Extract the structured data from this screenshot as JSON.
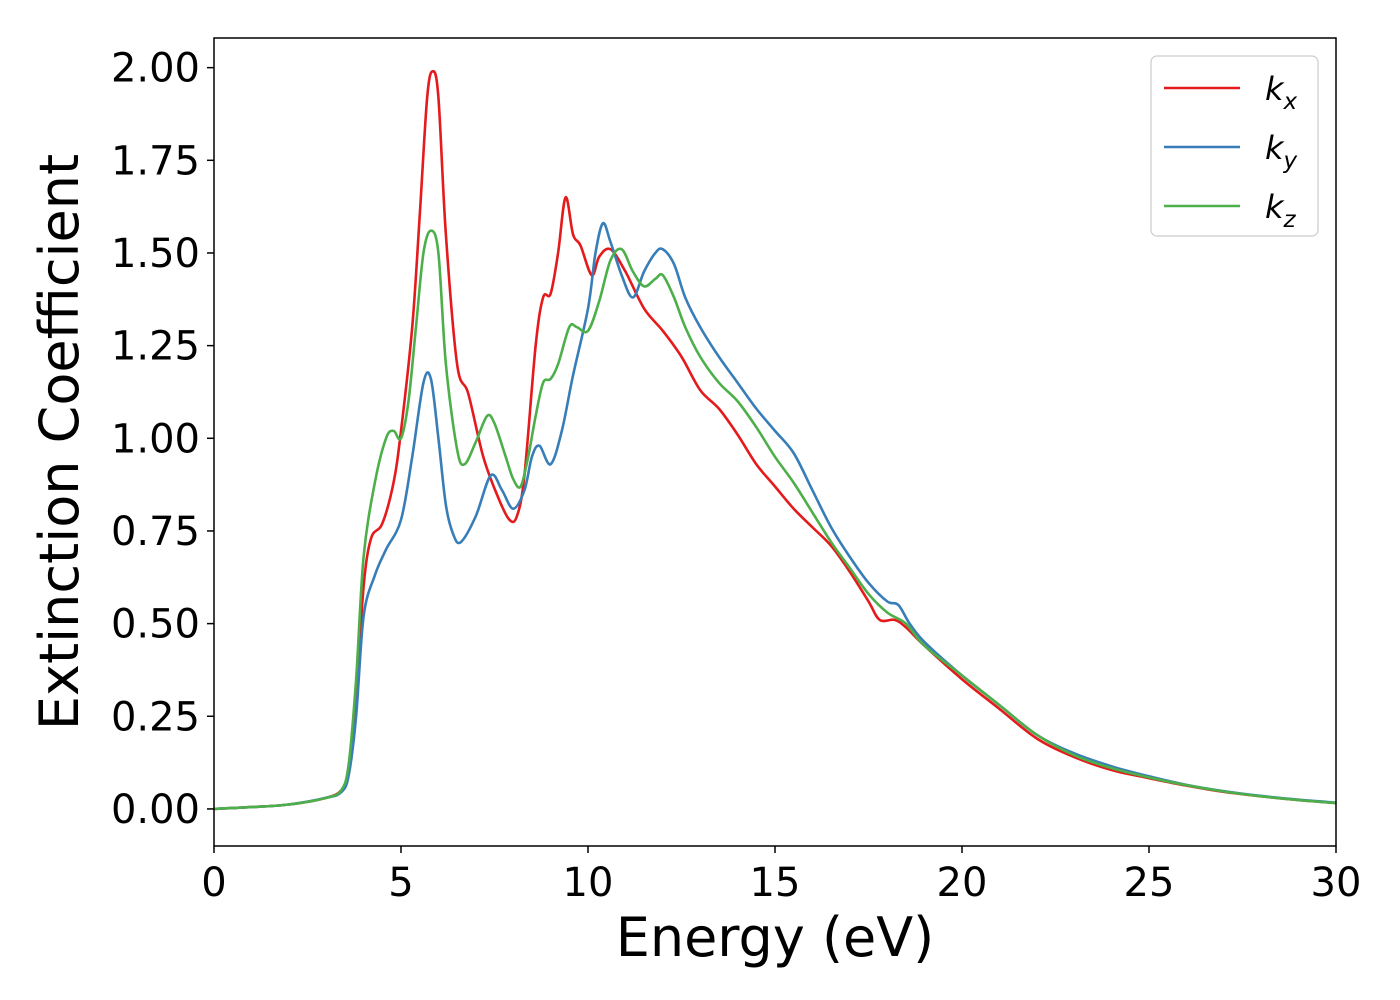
{
  "chart_data": {
    "type": "line",
    "xlabel": "Energy (eV)",
    "ylabel": "Extinction Coefficient",
    "xlim": [
      0,
      30
    ],
    "ylim": [
      -0.1,
      2.08
    ],
    "xticks": [
      0,
      5,
      10,
      15,
      20,
      25,
      30
    ],
    "yticks": [
      0.0,
      0.25,
      0.5,
      0.75,
      1.0,
      1.25,
      1.5,
      1.75,
      2.0
    ],
    "grid": false,
    "legend_position": "top-right",
    "series": [
      {
        "name": "k",
        "subscript": "x",
        "color": "#e41a1c",
        "x": [
          0,
          1,
          2,
          3,
          3.4,
          3.6,
          3.8,
          4.0,
          4.2,
          4.5,
          4.8,
          5.0,
          5.3,
          5.5,
          5.7,
          5.85,
          6.0,
          6.2,
          6.5,
          6.8,
          7.2,
          7.6,
          7.9,
          8.1,
          8.3,
          8.6,
          8.8,
          9.0,
          9.2,
          9.4,
          9.6,
          9.8,
          10.1,
          10.3,
          10.6,
          11.0,
          11.5,
          12.0,
          12.5,
          13.0,
          13.5,
          14.0,
          14.5,
          15.0,
          15.5,
          16.0,
          16.5,
          17.0,
          17.5,
          17.8,
          18.2,
          18.5,
          19.0,
          20.0,
          21.0,
          22.0,
          23.0,
          24.0,
          25.0,
          26.0,
          27.0,
          28.0,
          29.0,
          30.0
        ],
        "y": [
          0.0,
          0.005,
          0.012,
          0.03,
          0.05,
          0.1,
          0.3,
          0.6,
          0.73,
          0.77,
          0.88,
          1.02,
          1.3,
          1.6,
          1.92,
          1.99,
          1.92,
          1.55,
          1.2,
          1.12,
          0.95,
          0.84,
          0.78,
          0.79,
          0.9,
          1.25,
          1.38,
          1.39,
          1.5,
          1.65,
          1.55,
          1.52,
          1.44,
          1.49,
          1.51,
          1.45,
          1.35,
          1.29,
          1.22,
          1.13,
          1.08,
          1.01,
          0.93,
          0.87,
          0.81,
          0.76,
          0.71,
          0.64,
          0.56,
          0.51,
          0.51,
          0.49,
          0.44,
          0.35,
          0.27,
          0.19,
          0.14,
          0.105,
          0.083,
          0.063,
          0.046,
          0.034,
          0.024,
          0.016
        ]
      },
      {
        "name": "k",
        "subscript": "y",
        "color": "#377eb8",
        "x": [
          0,
          1,
          2,
          3,
          3.4,
          3.6,
          3.8,
          4.0,
          4.3,
          4.6,
          5.0,
          5.3,
          5.6,
          5.8,
          6.0,
          6.2,
          6.4,
          6.6,
          7.0,
          7.4,
          7.7,
          8.0,
          8.3,
          8.5,
          8.7,
          9.0,
          9.3,
          9.6,
          10.0,
          10.2,
          10.4,
          10.6,
          10.9,
          11.2,
          11.5,
          11.8,
          12.0,
          12.3,
          12.6,
          13.0,
          13.5,
          14.0,
          14.5,
          15.0,
          15.5,
          16.0,
          16.5,
          17.0,
          17.5,
          18.0,
          18.3,
          18.6,
          19.0,
          20.0,
          21.0,
          22.0,
          23.0,
          24.0,
          25.0,
          26.0,
          27.0,
          28.0,
          29.0,
          30.0
        ],
        "y": [
          0.0,
          0.005,
          0.012,
          0.03,
          0.045,
          0.09,
          0.25,
          0.52,
          0.63,
          0.7,
          0.78,
          0.95,
          1.15,
          1.16,
          1.0,
          0.82,
          0.74,
          0.72,
          0.79,
          0.9,
          0.86,
          0.81,
          0.86,
          0.95,
          0.98,
          0.93,
          1.02,
          1.17,
          1.35,
          1.5,
          1.58,
          1.53,
          1.44,
          1.38,
          1.45,
          1.5,
          1.51,
          1.47,
          1.38,
          1.3,
          1.22,
          1.15,
          1.08,
          1.02,
          0.96,
          0.86,
          0.76,
          0.68,
          0.61,
          0.56,
          0.55,
          0.5,
          0.45,
          0.36,
          0.28,
          0.2,
          0.15,
          0.115,
          0.088,
          0.065,
          0.048,
          0.035,
          0.025,
          0.017
        ]
      },
      {
        "name": "k",
        "subscript": "z",
        "color": "#4daf4a",
        "x": [
          0,
          1,
          2,
          3,
          3.4,
          3.6,
          3.8,
          4.0,
          4.3,
          4.6,
          4.8,
          5.0,
          5.2,
          5.4,
          5.6,
          5.8,
          6.0,
          6.2,
          6.5,
          6.7,
          7.0,
          7.3,
          7.5,
          7.8,
          8.0,
          8.2,
          8.4,
          8.6,
          8.8,
          9.0,
          9.2,
          9.5,
          9.7,
          10.0,
          10.3,
          10.6,
          10.9,
          11.2,
          11.5,
          11.8,
          12.0,
          12.3,
          12.6,
          13.0,
          13.5,
          14.0,
          14.5,
          15.0,
          15.5,
          16.0,
          16.5,
          17.0,
          17.5,
          18.0,
          18.5,
          19.0,
          20.0,
          21.0,
          22.0,
          23.0,
          24.0,
          25.0,
          26.0,
          27.0,
          28.0,
          29.0,
          30.0
        ],
        "y": [
          0.0,
          0.005,
          0.012,
          0.03,
          0.05,
          0.12,
          0.35,
          0.68,
          0.88,
          1.0,
          1.02,
          1.0,
          1.1,
          1.3,
          1.5,
          1.56,
          1.5,
          1.2,
          0.97,
          0.93,
          0.99,
          1.06,
          1.04,
          0.95,
          0.89,
          0.87,
          0.95,
          1.06,
          1.15,
          1.16,
          1.2,
          1.3,
          1.3,
          1.29,
          1.37,
          1.48,
          1.51,
          1.45,
          1.41,
          1.43,
          1.44,
          1.38,
          1.3,
          1.22,
          1.15,
          1.1,
          1.03,
          0.95,
          0.88,
          0.8,
          0.72,
          0.65,
          0.58,
          0.53,
          0.5,
          0.44,
          0.36,
          0.28,
          0.2,
          0.145,
          0.11,
          0.085,
          0.064,
          0.047,
          0.034,
          0.024,
          0.016
        ]
      }
    ]
  }
}
